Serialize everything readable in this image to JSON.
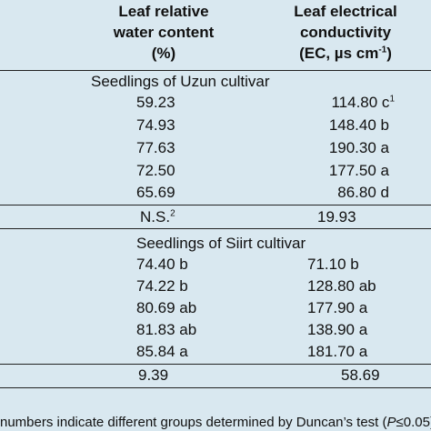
{
  "header": {
    "col1_lines": [
      "Leaf relative",
      "water content",
      "(%)"
    ],
    "col2_lines": [
      "Leaf electrical",
      "conductivity"
    ],
    "col2_unit_prefix": "(EC, µs cm",
    "col2_unit_sup": "-1",
    "col2_unit_suffix": ")"
  },
  "section1": {
    "title": "Seedlings of Uzun cultivar",
    "rows": [
      {
        "c1": "59.23",
        "c2": "114.80 c",
        "c2_sup": "1"
      },
      {
        "c1": "74.93",
        "c2": "148.40 b",
        "c2_sup": ""
      },
      {
        "c1": "77.63",
        "c2": "190.30 a",
        "c2_sup": ""
      },
      {
        "c1": "72.50",
        "c2": "177.50 a",
        "c2_sup": ""
      },
      {
        "c1": "65.69",
        "c2": "86.80 d",
        "c2_sup": ""
      }
    ],
    "lsd": {
      "c1": "N.S.",
      "c1_sup": "2",
      "c2": "19.93"
    }
  },
  "section2": {
    "title": "Seedlings of Siirt cultivar",
    "rows": [
      {
        "c1": "74.40 b",
        "c2": "71.10 b"
      },
      {
        "c1": "74.22 b",
        "c2": "128.80 ab"
      },
      {
        "c1": "80.69 ab",
        "c2": "177.90 a"
      },
      {
        "c1": "81.83 ab",
        "c2": "138.90 a"
      },
      {
        "c1": "85.84 a",
        "c2": "181.70 a"
      }
    ],
    "lsd": {
      "c1": "9.39",
      "c2": "58.69"
    }
  },
  "footnote": {
    "prefix": "numbers indicate different groups determined by Duncan’s test (",
    "italic": "P",
    "suffix": "≤0.05)."
  }
}
